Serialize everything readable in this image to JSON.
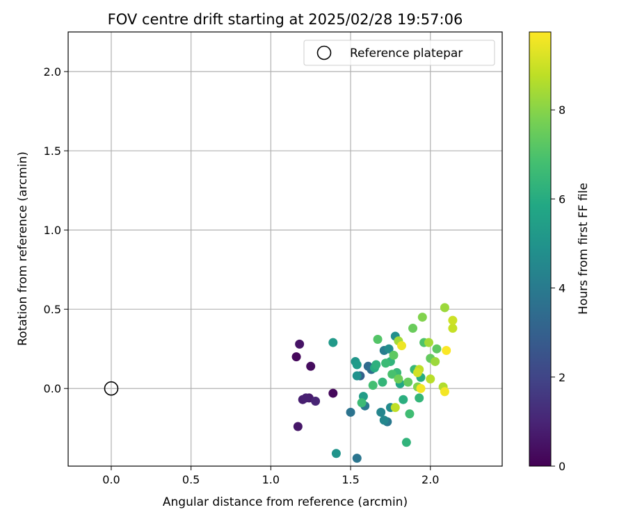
{
  "chart_data": {
    "type": "scatter",
    "title": "FOV centre drift starting at 2025/02/28 19:57:06",
    "xlabel": "Angular distance from reference (arcmin)",
    "ylabel": "Rotation from reference (arcmin)",
    "xlim": [
      -0.27,
      2.45
    ],
    "ylim": [
      -0.49,
      2.25
    ],
    "xticks": [
      0.0,
      0.5,
      1.0,
      1.5,
      2.0
    ],
    "xtick_labels": [
      "0.0",
      "0.5",
      "1.0",
      "1.5",
      "2.0"
    ],
    "yticks": [
      0.0,
      0.5,
      1.0,
      1.5,
      2.0
    ],
    "ytick_labels": [
      "0.0",
      "0.5",
      "1.0",
      "1.5",
      "2.0"
    ],
    "grid": true,
    "colormap": "viridis",
    "colorbar": {
      "label": "Hours from first FF file",
      "range": [
        0,
        9.75
      ],
      "ticks": [
        0,
        2,
        4,
        6,
        8
      ],
      "tick_labels": [
        "0",
        "2",
        "4",
        "6",
        "8"
      ]
    },
    "legend": {
      "position": "top-right",
      "entries": [
        {
          "label": "Reference platepar",
          "marker": "open-circle",
          "color": "#000000"
        }
      ]
    },
    "reference_point": {
      "x": 0.0,
      "y": 0.0
    },
    "points": [
      {
        "x": 1.16,
        "y": 0.2,
        "h": 0.2
      },
      {
        "x": 1.18,
        "y": 0.28,
        "h": 0.5
      },
      {
        "x": 1.17,
        "y": -0.24,
        "h": 0.6
      },
      {
        "x": 1.2,
        "y": -0.07,
        "h": 0.8
      },
      {
        "x": 1.22,
        "y": -0.06,
        "h": 0.9
      },
      {
        "x": 1.24,
        "y": -0.06,
        "h": 0.7
      },
      {
        "x": 1.25,
        "y": 0.14,
        "h": 0.3
      },
      {
        "x": 1.28,
        "y": -0.08,
        "h": 1.0
      },
      {
        "x": 1.39,
        "y": -0.03,
        "h": 0.2
      },
      {
        "x": 1.39,
        "y": 0.29,
        "h": 5.2
      },
      {
        "x": 1.41,
        "y": -0.41,
        "h": 5.0
      },
      {
        "x": 1.5,
        "y": -0.15,
        "h": 3.7
      },
      {
        "x": 1.53,
        "y": 0.17,
        "h": 5.1
      },
      {
        "x": 1.54,
        "y": 0.15,
        "h": 5.3
      },
      {
        "x": 1.54,
        "y": 0.08,
        "h": 4.9
      },
      {
        "x": 1.54,
        "y": -0.44,
        "h": 3.8
      },
      {
        "x": 1.56,
        "y": 0.08,
        "h": 3.0
      },
      {
        "x": 1.57,
        "y": -0.09,
        "h": 6.6
      },
      {
        "x": 1.58,
        "y": -0.05,
        "h": 5.4
      },
      {
        "x": 1.59,
        "y": -0.11,
        "h": 3.9
      },
      {
        "x": 1.61,
        "y": 0.14,
        "h": 3.4
      },
      {
        "x": 1.63,
        "y": 0.12,
        "h": 3.5
      },
      {
        "x": 1.64,
        "y": 0.02,
        "h": 6.8
      },
      {
        "x": 1.65,
        "y": 0.13,
        "h": 6.0
      },
      {
        "x": 1.66,
        "y": 0.15,
        "h": 6.2
      },
      {
        "x": 1.67,
        "y": 0.31,
        "h": 7.1
      },
      {
        "x": 1.69,
        "y": -0.15,
        "h": 4.4
      },
      {
        "x": 1.7,
        "y": 0.04,
        "h": 6.4
      },
      {
        "x": 1.71,
        "y": 0.24,
        "h": 4.1
      },
      {
        "x": 1.71,
        "y": -0.2,
        "h": 4.5
      },
      {
        "x": 1.72,
        "y": 0.16,
        "h": 6.6
      },
      {
        "x": 1.73,
        "y": -0.21,
        "h": 3.9
      },
      {
        "x": 1.74,
        "y": 0.25,
        "h": 4.7
      },
      {
        "x": 1.75,
        "y": -0.12,
        "h": 4.6
      },
      {
        "x": 1.75,
        "y": 0.17,
        "h": 6.3
      },
      {
        "x": 1.76,
        "y": 0.09,
        "h": 6.9
      },
      {
        "x": 1.77,
        "y": 0.21,
        "h": 7.3
      },
      {
        "x": 1.78,
        "y": 0.33,
        "h": 4.8
      },
      {
        "x": 1.78,
        "y": -0.12,
        "h": 8.8
      },
      {
        "x": 1.79,
        "y": 0.1,
        "h": 6.5
      },
      {
        "x": 1.8,
        "y": 0.06,
        "h": 7.6
      },
      {
        "x": 1.8,
        "y": 0.3,
        "h": 8.4
      },
      {
        "x": 1.81,
        "y": 0.03,
        "h": 5.8
      },
      {
        "x": 1.82,
        "y": 0.27,
        "h": 9.5
      },
      {
        "x": 1.83,
        "y": -0.07,
        "h": 6.1
      },
      {
        "x": 1.85,
        "y": -0.34,
        "h": 6.3
      },
      {
        "x": 1.86,
        "y": 0.04,
        "h": 7.4
      },
      {
        "x": 1.87,
        "y": -0.16,
        "h": 6.7
      },
      {
        "x": 1.89,
        "y": 0.38,
        "h": 7.5
      },
      {
        "x": 1.9,
        "y": 0.12,
        "h": 6.5
      },
      {
        "x": 1.92,
        "y": 0.1,
        "h": 9.1
      },
      {
        "x": 1.92,
        "y": 0.01,
        "h": 7.9
      },
      {
        "x": 1.93,
        "y": 0.12,
        "h": 8.8
      },
      {
        "x": 1.93,
        "y": -0.06,
        "h": 6.4
      },
      {
        "x": 1.94,
        "y": 0.0,
        "h": 9.6
      },
      {
        "x": 1.94,
        "y": 0.07,
        "h": 6.0
      },
      {
        "x": 1.95,
        "y": 0.45,
        "h": 7.9
      },
      {
        "x": 1.96,
        "y": 0.29,
        "h": 7.0
      },
      {
        "x": 1.99,
        "y": 0.29,
        "h": 8.4
      },
      {
        "x": 2.0,
        "y": 0.19,
        "h": 7.4
      },
      {
        "x": 2.0,
        "y": 0.06,
        "h": 8.7
      },
      {
        "x": 2.03,
        "y": 0.17,
        "h": 8.3
      },
      {
        "x": 2.04,
        "y": 0.25,
        "h": 7.3
      },
      {
        "x": 2.08,
        "y": 0.01,
        "h": 8.6
      },
      {
        "x": 2.09,
        "y": 0.51,
        "h": 8.3
      },
      {
        "x": 2.09,
        "y": -0.02,
        "h": 9.6
      },
      {
        "x": 2.1,
        "y": 0.24,
        "h": 9.7
      },
      {
        "x": 2.14,
        "y": 0.43,
        "h": 9.0
      },
      {
        "x": 2.14,
        "y": 0.38,
        "h": 8.9
      }
    ]
  }
}
